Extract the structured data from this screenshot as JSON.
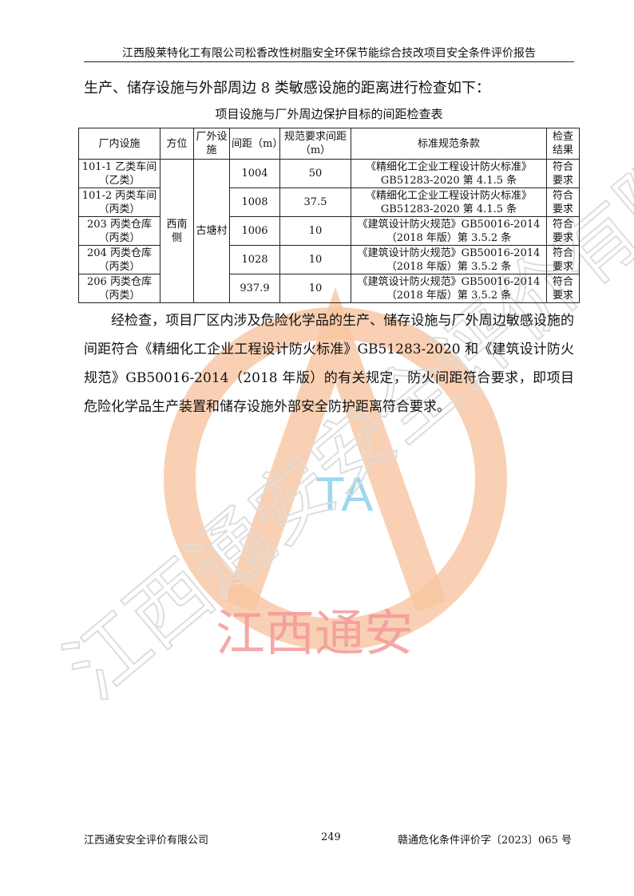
{
  "header": {
    "title": "江西殷莱特化工有限公司松香改性树脂安全环保节能综合技改项目安全条件评价报告"
  },
  "intro": "生产、储存设施与外部周边 8 类敏感设施的距离进行检查如下：",
  "table": {
    "caption": "项目设施与厂外周边保护目标的间距检查表",
    "headers": [
      "厂内设施",
      "方位",
      "厂外设施",
      "间距（m）",
      "规范要求间距（m）",
      "标准规范条款",
      "检查结果"
    ],
    "direction": "西南侧",
    "external": "古塘村",
    "rows": [
      {
        "facility": "101-1 乙类车间（乙类）",
        "distance": "1004",
        "required": "50",
        "clause": "《精细化工企业工程设计防火标准》GB51283-2020 第 4.1.5 条",
        "result": "符合要求"
      },
      {
        "facility": "101-2 丙类车间（丙类）",
        "distance": "1008",
        "required": "37.5",
        "clause": "《精细化工企业工程设计防火标准》GB51283-2020 第 4.1.5 条",
        "result": "符合要求"
      },
      {
        "facility": "203 丙类仓库（丙类）",
        "distance": "1006",
        "required": "10",
        "clause": "《建筑设计防火规范》GB50016-2014（2018 年版）第 3.5.2 条",
        "result": "符合要求"
      },
      {
        "facility": "204 丙类仓库（丙类）",
        "distance": "1028",
        "required": "10",
        "clause": "《建筑设计防火规范》GB50016-2014（2018 年版）第 3.5.2 条",
        "result": "符合要求"
      },
      {
        "facility": "206 丙类仓库（丙类）",
        "distance": "937.9",
        "required": "10",
        "clause": "《建筑设计防火规范》GB50016-2014（2018 年版）第 3.5.2 条",
        "result": "符合要求"
      }
    ]
  },
  "paragraph": "经检查，项目厂区内涉及危险化学品的生产、储存设施与厂外周边敏感设施的间距符合《精细化工企业工程设计防火标准》GB51283-2020 和《建筑设计防火规范》GB50016-2014（2018 年版）的有关规定，防火间距符合要求，即项目危险化学品生产装置和储存设施外部安全防护距离符合要求。",
  "footer": {
    "company": "江西通安安全评价有限公司",
    "page": "249",
    "doc_no": "赣通危化条件评价字〔2023〕065 号"
  },
  "watermark": {
    "text": "江西通安",
    "diagonal": "江西通安安全评价有限公司",
    "logo": "QTA",
    "colors": {
      "orange": "#f6b48a",
      "red": "#f08a8a",
      "gray": "#e3e3e3"
    }
  }
}
